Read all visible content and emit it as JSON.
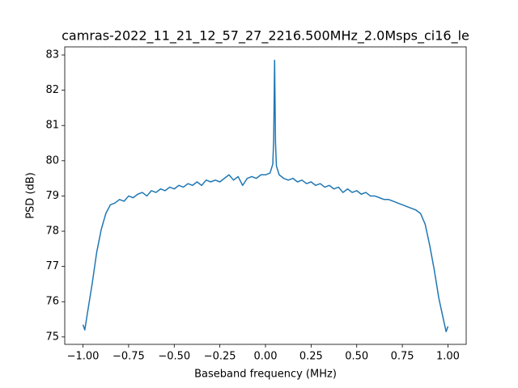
{
  "chart_data": {
    "type": "line",
    "title": "camras-2022_11_21_12_57_27_2216.500MHz_2.0Msps_ci16_le",
    "x_label": "Baseband frequency (MHz)",
    "y_label": "PSD (dB)",
    "x": [
      -1.0,
      -0.99,
      -0.975,
      -0.95,
      -0.925,
      -0.9,
      -0.875,
      -0.85,
      -0.825,
      -0.8,
      -0.775,
      -0.75,
      -0.725,
      -0.7,
      -0.675,
      -0.65,
      -0.625,
      -0.6,
      -0.575,
      -0.55,
      -0.525,
      -0.5,
      -0.475,
      -0.45,
      -0.425,
      -0.4,
      -0.375,
      -0.35,
      -0.325,
      -0.3,
      -0.275,
      -0.25,
      -0.225,
      -0.2,
      -0.175,
      -0.15,
      -0.125,
      -0.1,
      -0.075,
      -0.05,
      -0.025,
      0,
      0.025,
      0.04,
      0.045,
      0.05,
      0.055,
      0.06,
      0.075,
      0.1,
      0.125,
      0.15,
      0.175,
      0.2,
      0.225,
      0.25,
      0.275,
      0.3,
      0.325,
      0.35,
      0.375,
      0.4,
      0.425,
      0.45,
      0.475,
      0.5,
      0.525,
      0.55,
      0.575,
      0.6,
      0.625,
      0.65,
      0.675,
      0.7,
      0.725,
      0.75,
      0.775,
      0.8,
      0.825,
      0.85,
      0.875,
      0.9,
      0.925,
      0.95,
      0.975,
      0.99,
      1.0
    ],
    "series": [
      {
        "color": "#1f77b4",
        "values": [
          75.35,
          75.2,
          75.7,
          76.5,
          77.4,
          78.05,
          78.5,
          78.75,
          78.8,
          78.9,
          78.85,
          79.0,
          78.95,
          79.05,
          79.1,
          79.0,
          79.15,
          79.1,
          79.2,
          79.15,
          79.25,
          79.2,
          79.3,
          79.25,
          79.35,
          79.3,
          79.4,
          79.3,
          79.45,
          79.4,
          79.45,
          79.4,
          79.5,
          79.6,
          79.45,
          79.55,
          79.3,
          79.5,
          79.55,
          79.5,
          79.6,
          79.6,
          79.65,
          79.9,
          80.6,
          82.85,
          80.5,
          79.85,
          79.6,
          79.5,
          79.45,
          79.5,
          79.4,
          79.45,
          79.35,
          79.4,
          79.3,
          79.35,
          79.25,
          79.3,
          79.2,
          79.25,
          79.1,
          79.2,
          79.1,
          79.15,
          79.05,
          79.1,
          79.0,
          79.0,
          78.95,
          78.9,
          78.9,
          78.85,
          78.8,
          78.75,
          78.7,
          78.65,
          78.6,
          78.5,
          78.2,
          77.6,
          76.9,
          76.1,
          75.5,
          75.15,
          75.3
        ]
      }
    ],
    "xlim": [
      -1.1,
      1.1
    ],
    "ylim": [
      74.79,
      83.23
    ],
    "xticks": [
      {
        "value": -1,
        "label": "−1.00"
      },
      {
        "value": -0.75,
        "label": "−0.75"
      },
      {
        "value": -0.5,
        "label": "−0.50"
      },
      {
        "value": -0.25,
        "label": "−0.25"
      },
      {
        "value": 0,
        "label": "0.00"
      },
      {
        "value": 0.25,
        "label": "0.25"
      },
      {
        "value": 0.5,
        "label": "0.50"
      },
      {
        "value": 0.75,
        "label": "0.75"
      },
      {
        "value": 1,
        "label": "1.00"
      }
    ],
    "yticks": [
      75,
      76,
      77,
      78,
      79,
      80,
      81,
      82,
      83
    ]
  }
}
